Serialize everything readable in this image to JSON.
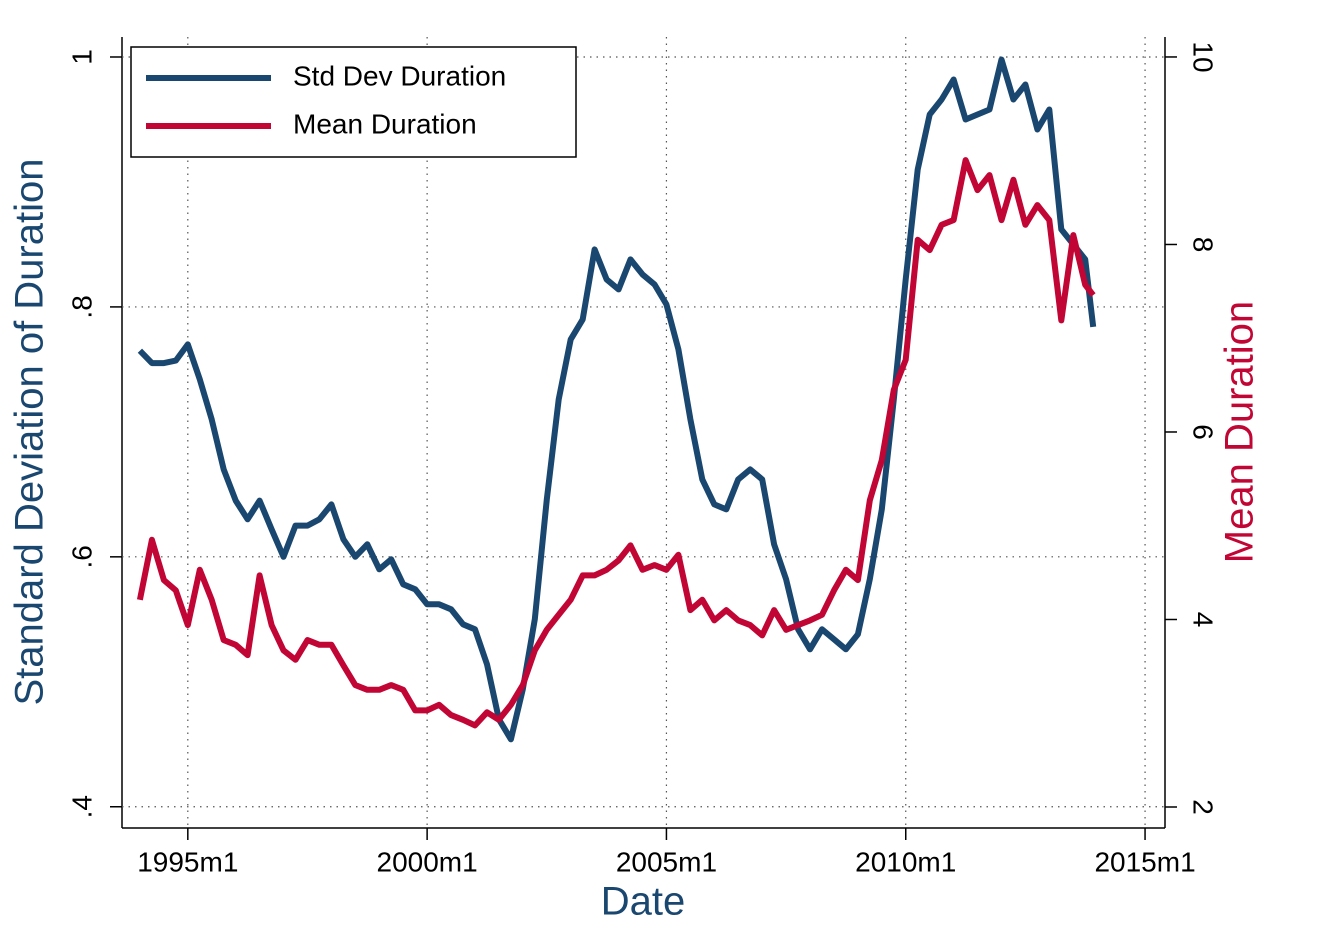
{
  "chart_data": {
    "type": "line",
    "xlabel": "Date",
    "ylabel": "Standard Deviation of Duration",
    "y2label": "Mean Duration",
    "x": [
      408,
      411,
      414,
      417,
      420,
      423,
      426,
      429,
      432,
      435,
      438,
      441,
      444,
      447,
      450,
      453,
      456,
      459,
      462,
      465,
      468,
      471,
      474,
      477,
      480,
      483,
      486,
      489,
      492,
      495,
      498,
      501,
      504,
      507,
      510,
      513,
      516,
      519,
      522,
      525,
      528,
      531,
      534,
      537,
      540,
      543,
      546,
      549,
      552,
      555,
      558,
      561,
      564,
      567,
      570,
      573,
      576,
      579,
      582,
      585,
      588,
      591,
      594,
      597,
      600,
      603,
      606,
      609,
      612,
      615,
      618,
      621,
      624,
      627,
      630,
      633,
      636,
      639,
      642,
      645,
      647
    ],
    "series": [
      {
        "name": "Std Dev Duration",
        "color": "#1a476f",
        "axis": "y",
        "values": [
          0.765,
          0.755,
          0.755,
          0.757,
          0.77,
          0.742,
          0.71,
          0.67,
          0.645,
          0.63,
          0.645,
          0.622,
          0.6,
          0.625,
          0.625,
          0.63,
          0.642,
          0.614,
          0.6,
          0.61,
          0.59,
          0.598,
          0.578,
          0.574,
          0.562,
          0.562,
          0.558,
          0.546,
          0.542,
          0.514,
          0.47,
          0.454,
          0.494,
          0.55,
          0.646,
          0.726,
          0.774,
          0.79,
          0.846,
          0.822,
          0.814,
          0.838,
          0.826,
          0.818,
          0.802,
          0.766,
          0.71,
          0.662,
          0.642,
          0.638,
          0.662,
          0.67,
          0.662,
          0.61,
          0.582,
          0.542,
          0.526,
          0.542,
          0.534,
          0.526,
          0.538,
          0.582,
          0.638,
          0.726,
          0.822,
          0.91,
          0.954,
          0.966,
          0.982,
          0.95,
          0.954,
          0.958,
          0.998,
          0.966,
          0.978,
          0.942,
          0.958,
          0.862,
          0.85,
          0.838,
          0.784
        ]
      },
      {
        "name": "Mean Duration",
        "color": "#c10534",
        "axis": "y2",
        "values": [
          4.21,
          4.85,
          4.42,
          4.31,
          3.94,
          4.53,
          4.21,
          3.78,
          3.73,
          3.62,
          4.47,
          3.94,
          3.67,
          3.57,
          3.78,
          3.73,
          3.73,
          3.51,
          3.3,
          3.25,
          3.25,
          3.3,
          3.25,
          3.03,
          3.03,
          3.09,
          2.98,
          2.93,
          2.87,
          3.01,
          2.93,
          3.09,
          3.3,
          3.67,
          3.89,
          4.05,
          4.21,
          4.47,
          4.47,
          4.53,
          4.63,
          4.79,
          4.53,
          4.58,
          4.53,
          4.69,
          4.1,
          4.21,
          3.99,
          4.1,
          3.99,
          3.94,
          3.83,
          4.1,
          3.89,
          3.94,
          3.99,
          4.05,
          4.31,
          4.53,
          4.42,
          5.27,
          5.7,
          6.45,
          6.77,
          8.05,
          7.94,
          8.21,
          8.26,
          8.9,
          8.58,
          8.74,
          8.26,
          8.69,
          8.21,
          8.42,
          8.26,
          7.19,
          8.1,
          7.57,
          7.46
        ]
      }
    ],
    "xlim": [
      403.5,
      665
    ],
    "xticks": [
      {
        "value": 420,
        "label": "1995m1"
      },
      {
        "value": 480,
        "label": "2000m1"
      },
      {
        "value": 540,
        "label": "2005m1"
      },
      {
        "value": 600,
        "label": "2010m1"
      },
      {
        "value": 660,
        "label": "2015m1"
      }
    ],
    "ylim": [
      0.383,
      1.016
    ],
    "yticks": [
      {
        "value": 0.4,
        "label": ".4"
      },
      {
        "value": 0.6,
        "label": ".6"
      },
      {
        "value": 0.8,
        "label": ".8"
      },
      1
    ],
    "y2lim": [
      1.776,
      10.213
    ],
    "y2ticks": [
      2,
      4,
      6,
      8,
      10
    ],
    "grid": true,
    "legend": "top-left"
  }
}
